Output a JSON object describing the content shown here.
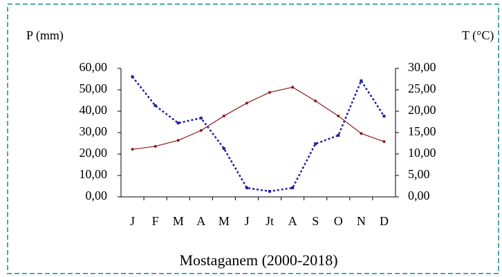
{
  "chart_data": {
    "type": "line",
    "title": "Mostaganem (2000-2018)",
    "ylabel": "P (mm)",
    "y2label": "T (°C)",
    "categories": [
      "J",
      "F",
      "M",
      "A",
      "M",
      "J",
      "Jt",
      "A",
      "S",
      "O",
      "N",
      "D"
    ],
    "series": [
      {
        "color": "#1f1f9e",
        "dash": true,
        "axis": "y",
        "values": [
          56.1,
          42.6,
          34.5,
          36.8,
          22.6,
          4.2,
          2.6,
          4.2,
          24.8,
          28.7,
          54.2,
          37.7
        ]
      },
      {
        "color": "#8b1a1a",
        "dash": false,
        "axis": "y2",
        "values": [
          11.1,
          11.8,
          13.2,
          15.5,
          18.9,
          21.9,
          24.4,
          25.6,
          22.4,
          18.9,
          14.8,
          12.9
        ]
      }
    ],
    "ylim": [
      0,
      60
    ],
    "yticks": [
      {
        "value": 0,
        "label": "0,00"
      },
      {
        "value": 10,
        "label": "10,00"
      },
      {
        "value": 20,
        "label": "20,00"
      },
      {
        "value": 30,
        "label": "30,00"
      },
      {
        "value": 40,
        "label": "40,00"
      },
      {
        "value": 50,
        "label": "50,00"
      },
      {
        "value": 60,
        "label": "60,00"
      }
    ],
    "y2lim": [
      0,
      30
    ],
    "y2ticks": [
      {
        "value": 0,
        "label": "0,00"
      },
      {
        "value": 5,
        "label": "5,00"
      },
      {
        "value": 10,
        "label": "10,00"
      },
      {
        "value": 15,
        "label": "15,00"
      },
      {
        "value": 20,
        "label": "20,00"
      },
      {
        "value": 25,
        "label": "25,00"
      },
      {
        "value": 30,
        "label": "30,00"
      }
    ]
  }
}
